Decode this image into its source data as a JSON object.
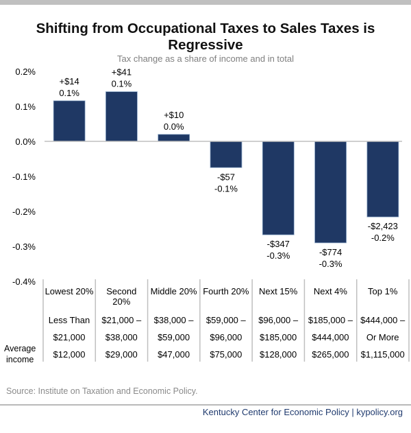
{
  "chart_data": {
    "type": "bar",
    "title": "Shifting from Occupational Taxes to Sales Taxes is Regressive",
    "subtitle": "Tax change as a share of income and in total",
    "xlabel": "",
    "ylabel": "",
    "ylim": [
      -0.4,
      0.2
    ],
    "yticks": [
      0.2,
      0.1,
      0.0,
      -0.1,
      -0.2,
      -0.3,
      -0.4
    ],
    "ytick_labels": [
      "0.2%",
      "0.1%",
      "0.0%",
      "-0.1%",
      "-0.2%",
      "-0.3%",
      "-0.4%"
    ],
    "grid": false,
    "bar_color": "#1f3864",
    "categories": [
      "Lowest 20%",
      "Second 20%",
      "Middle 20%",
      "Fourth 20%",
      "Next 15%",
      "Next 4%",
      "Top 1%"
    ],
    "values": [
      0.116,
      0.142,
      0.02,
      -0.075,
      -0.267,
      -0.29,
      -0.216
    ],
    "data_labels": [
      {
        "dollars": "+$14",
        "percent": "0.1%"
      },
      {
        "dollars": "+$41",
        "percent": "0.1%"
      },
      {
        "dollars": "+$10",
        "percent": "0.0%"
      },
      {
        "dollars": "-$57",
        "percent": "-0.1%"
      },
      {
        "dollars": "-$347",
        "percent": "-0.3%"
      },
      {
        "dollars": "-$774",
        "percent": "-0.3%"
      },
      {
        "dollars": "-$2,423",
        "percent": "-0.2%"
      }
    ]
  },
  "table": {
    "row_label": [
      "Average",
      "income"
    ],
    "columns": [
      {
        "header": [
          "Lowest 20%"
        ],
        "range_low": "Less Than",
        "range_high": "$21,000",
        "avg_income": "$12,000"
      },
      {
        "header": [
          "Second",
          "20%"
        ],
        "range_low": "$21,000 –",
        "range_high": "$38,000",
        "avg_income": "$29,000"
      },
      {
        "header": [
          "Middle 20%"
        ],
        "range_low": "$38,000 –",
        "range_high": "$59,000",
        "avg_income": "$47,000"
      },
      {
        "header": [
          "Fourth 20%"
        ],
        "range_low": "$59,000 –",
        "range_high": "$96,000",
        "avg_income": "$75,000"
      },
      {
        "header": [
          "Next 15%"
        ],
        "range_low": "$96,000 –",
        "range_high": "$185,000",
        "avg_income": "$128,000"
      },
      {
        "header": [
          "Next 4%"
        ],
        "range_low": "$185,000 –",
        "range_high": "$444,000",
        "avg_income": "$265,000"
      },
      {
        "header": [
          "Top 1%"
        ],
        "range_low": "$444,000 –",
        "range_high": "Or More",
        "avg_income": "$1,115,000"
      }
    ]
  },
  "source": "Source: Institute on Taxation and Economic Policy.",
  "footer": "Kentucky Center for Economic Policy | kypolicy.org"
}
